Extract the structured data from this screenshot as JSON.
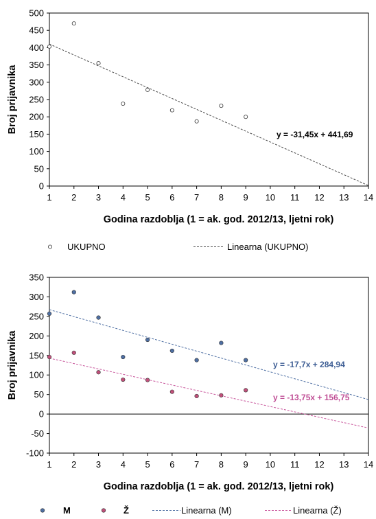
{
  "colors": {
    "ukupno": "#4a4a4a",
    "m": "#4e6fa3",
    "z": "#c8559b",
    "marker_z_fill": "#c0507a"
  },
  "chart_data": [
    {
      "type": "scatter",
      "xlabel": "Godina razdoblja (1 = ak. god. 2012/13, ljetni rok)",
      "ylabel": "Broj prijavnika",
      "xlim": [
        1,
        14
      ],
      "ylim": [
        0,
        500
      ],
      "xticks": [
        "1",
        "2",
        "3",
        "4",
        "5",
        "6",
        "7",
        "8",
        "9",
        "10",
        "11",
        "12",
        "13",
        "14"
      ],
      "yticks": [
        "0",
        "50",
        "100",
        "150",
        "200",
        "250",
        "300",
        "350",
        "400",
        "450",
        "500"
      ],
      "grid": false,
      "legend_position": "bottom",
      "series": [
        {
          "name": "UKUPNO",
          "kind": "markers",
          "color": "ukupno",
          "x": [
            1,
            2,
            3,
            4,
            5,
            6,
            7,
            8,
            9
          ],
          "y": [
            403,
            470,
            355,
            238,
            278,
            219,
            187,
            232,
            200
          ]
        },
        {
          "name": "Linearna (UKUPNO)",
          "kind": "trendline",
          "color": "ukupno",
          "slope": -31.45,
          "intercept": 441.69
        }
      ],
      "annotations": [
        {
          "text": "y = -31,45x + 441,69",
          "color": "#000000"
        }
      ]
    },
    {
      "type": "scatter",
      "xlabel": "Godina razdoblja (1 = ak. god. 2012/13, ljetni rok)",
      "ylabel": "Broj prijavnika",
      "xlim": [
        1,
        14
      ],
      "ylim": [
        -100,
        350
      ],
      "xticks": [
        "1",
        "2",
        "3",
        "4",
        "5",
        "6",
        "7",
        "8",
        "9",
        "10",
        "11",
        "12",
        "13",
        "14"
      ],
      "yticks": [
        "-100",
        "-50",
        "0",
        "50",
        "100",
        "150",
        "200",
        "250",
        "300",
        "350"
      ],
      "grid": false,
      "legend_position": "bottom",
      "series": [
        {
          "name": "M",
          "kind": "markers",
          "color": "m",
          "x": [
            1,
            2,
            3,
            4,
            5,
            6,
            7,
            8,
            9
          ],
          "y": [
            257,
            312,
            247,
            146,
            190,
            162,
            138,
            182,
            138
          ]
        },
        {
          "name": "Ž",
          "kind": "markers",
          "color": "z",
          "x": [
            1,
            2,
            3,
            4,
            5,
            6,
            7,
            8,
            9
          ],
          "y": [
            146,
            157,
            107,
            88,
            87,
            57,
            46,
            48,
            61
          ]
        },
        {
          "name": "Linearna (M)",
          "kind": "trendline",
          "color": "m",
          "slope": -17.7,
          "intercept": 284.94
        },
        {
          "name": "Linearna (Ž)",
          "kind": "trendline",
          "color": "z",
          "slope": -13.75,
          "intercept": 156.75
        }
      ],
      "annotations": [
        {
          "text": "y = -17,7x + 284,94",
          "color": "#3f5f95"
        },
        {
          "text": "y = -13,75x + 156,75",
          "color": "#c04f96"
        }
      ]
    }
  ]
}
